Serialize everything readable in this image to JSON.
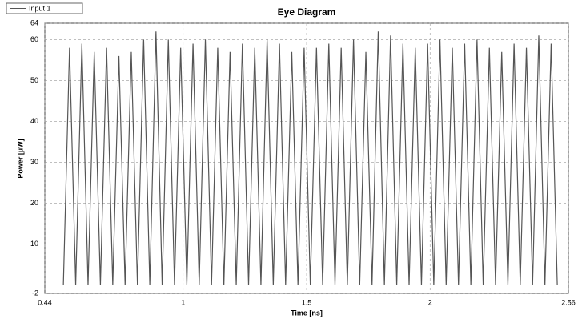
{
  "chart_data": {
    "type": "line",
    "title": "Eye Diagram",
    "x_label": "Time [ns]",
    "y_label": "Power [µW]",
    "xlim": [
      0.44,
      2.56
    ],
    "xticks": [
      0.44,
      1,
      1.5,
      2,
      2.56
    ],
    "ylim": [
      -2,
      64
    ],
    "yticks": [
      -2,
      10,
      20,
      30,
      40,
      50,
      60,
      64
    ],
    "grid": true,
    "legend": "top-left",
    "series": [
      {
        "name": "Input 1",
        "color": "#555555",
        "x": [
          0.515,
          0.54,
          0.565,
          0.59,
          0.615,
          0.64,
          0.665,
          0.69,
          0.715,
          0.74,
          0.765,
          0.79,
          0.815,
          0.84,
          0.865,
          0.89,
          0.915,
          0.94,
          0.965,
          0.99,
          1.015,
          1.04,
          1.065,
          1.09,
          1.115,
          1.14,
          1.165,
          1.19,
          1.215,
          1.24,
          1.265,
          1.29,
          1.315,
          1.34,
          1.365,
          1.39,
          1.415,
          1.44,
          1.465,
          1.49,
          1.515,
          1.54,
          1.565,
          1.59,
          1.615,
          1.64,
          1.665,
          1.69,
          1.715,
          1.74,
          1.765,
          1.79,
          1.815,
          1.84,
          1.865,
          1.89,
          1.915,
          1.94,
          1.965,
          1.99,
          2.015,
          2.04,
          2.065,
          2.09,
          2.115,
          2.14,
          2.165,
          2.19,
          2.215,
          2.24,
          2.265,
          2.29,
          2.315,
          2.34,
          2.365,
          2.39,
          2.415,
          2.44,
          2.465,
          2.49,
          2.515
        ],
        "values": [
          0,
          58,
          0,
          59,
          0,
          57,
          0,
          58,
          0,
          56,
          0,
          57,
          0,
          60,
          0,
          62,
          0,
          60,
          0,
          58,
          0,
          59,
          0,
          60,
          0,
          58,
          0,
          57,
          0,
          59,
          0,
          58,
          0,
          60,
          0,
          59,
          0,
          57,
          0,
          58,
          0,
          58,
          0,
          59,
          0,
          58,
          0,
          60,
          0,
          57,
          0,
          62,
          0,
          61,
          0,
          59,
          0,
          58,
          0,
          59,
          0,
          60,
          0,
          58,
          0,
          59,
          0,
          60,
          0,
          58,
          0,
          57,
          0,
          59,
          0,
          58,
          0,
          61,
          0,
          59,
          0
        ]
      }
    ]
  }
}
